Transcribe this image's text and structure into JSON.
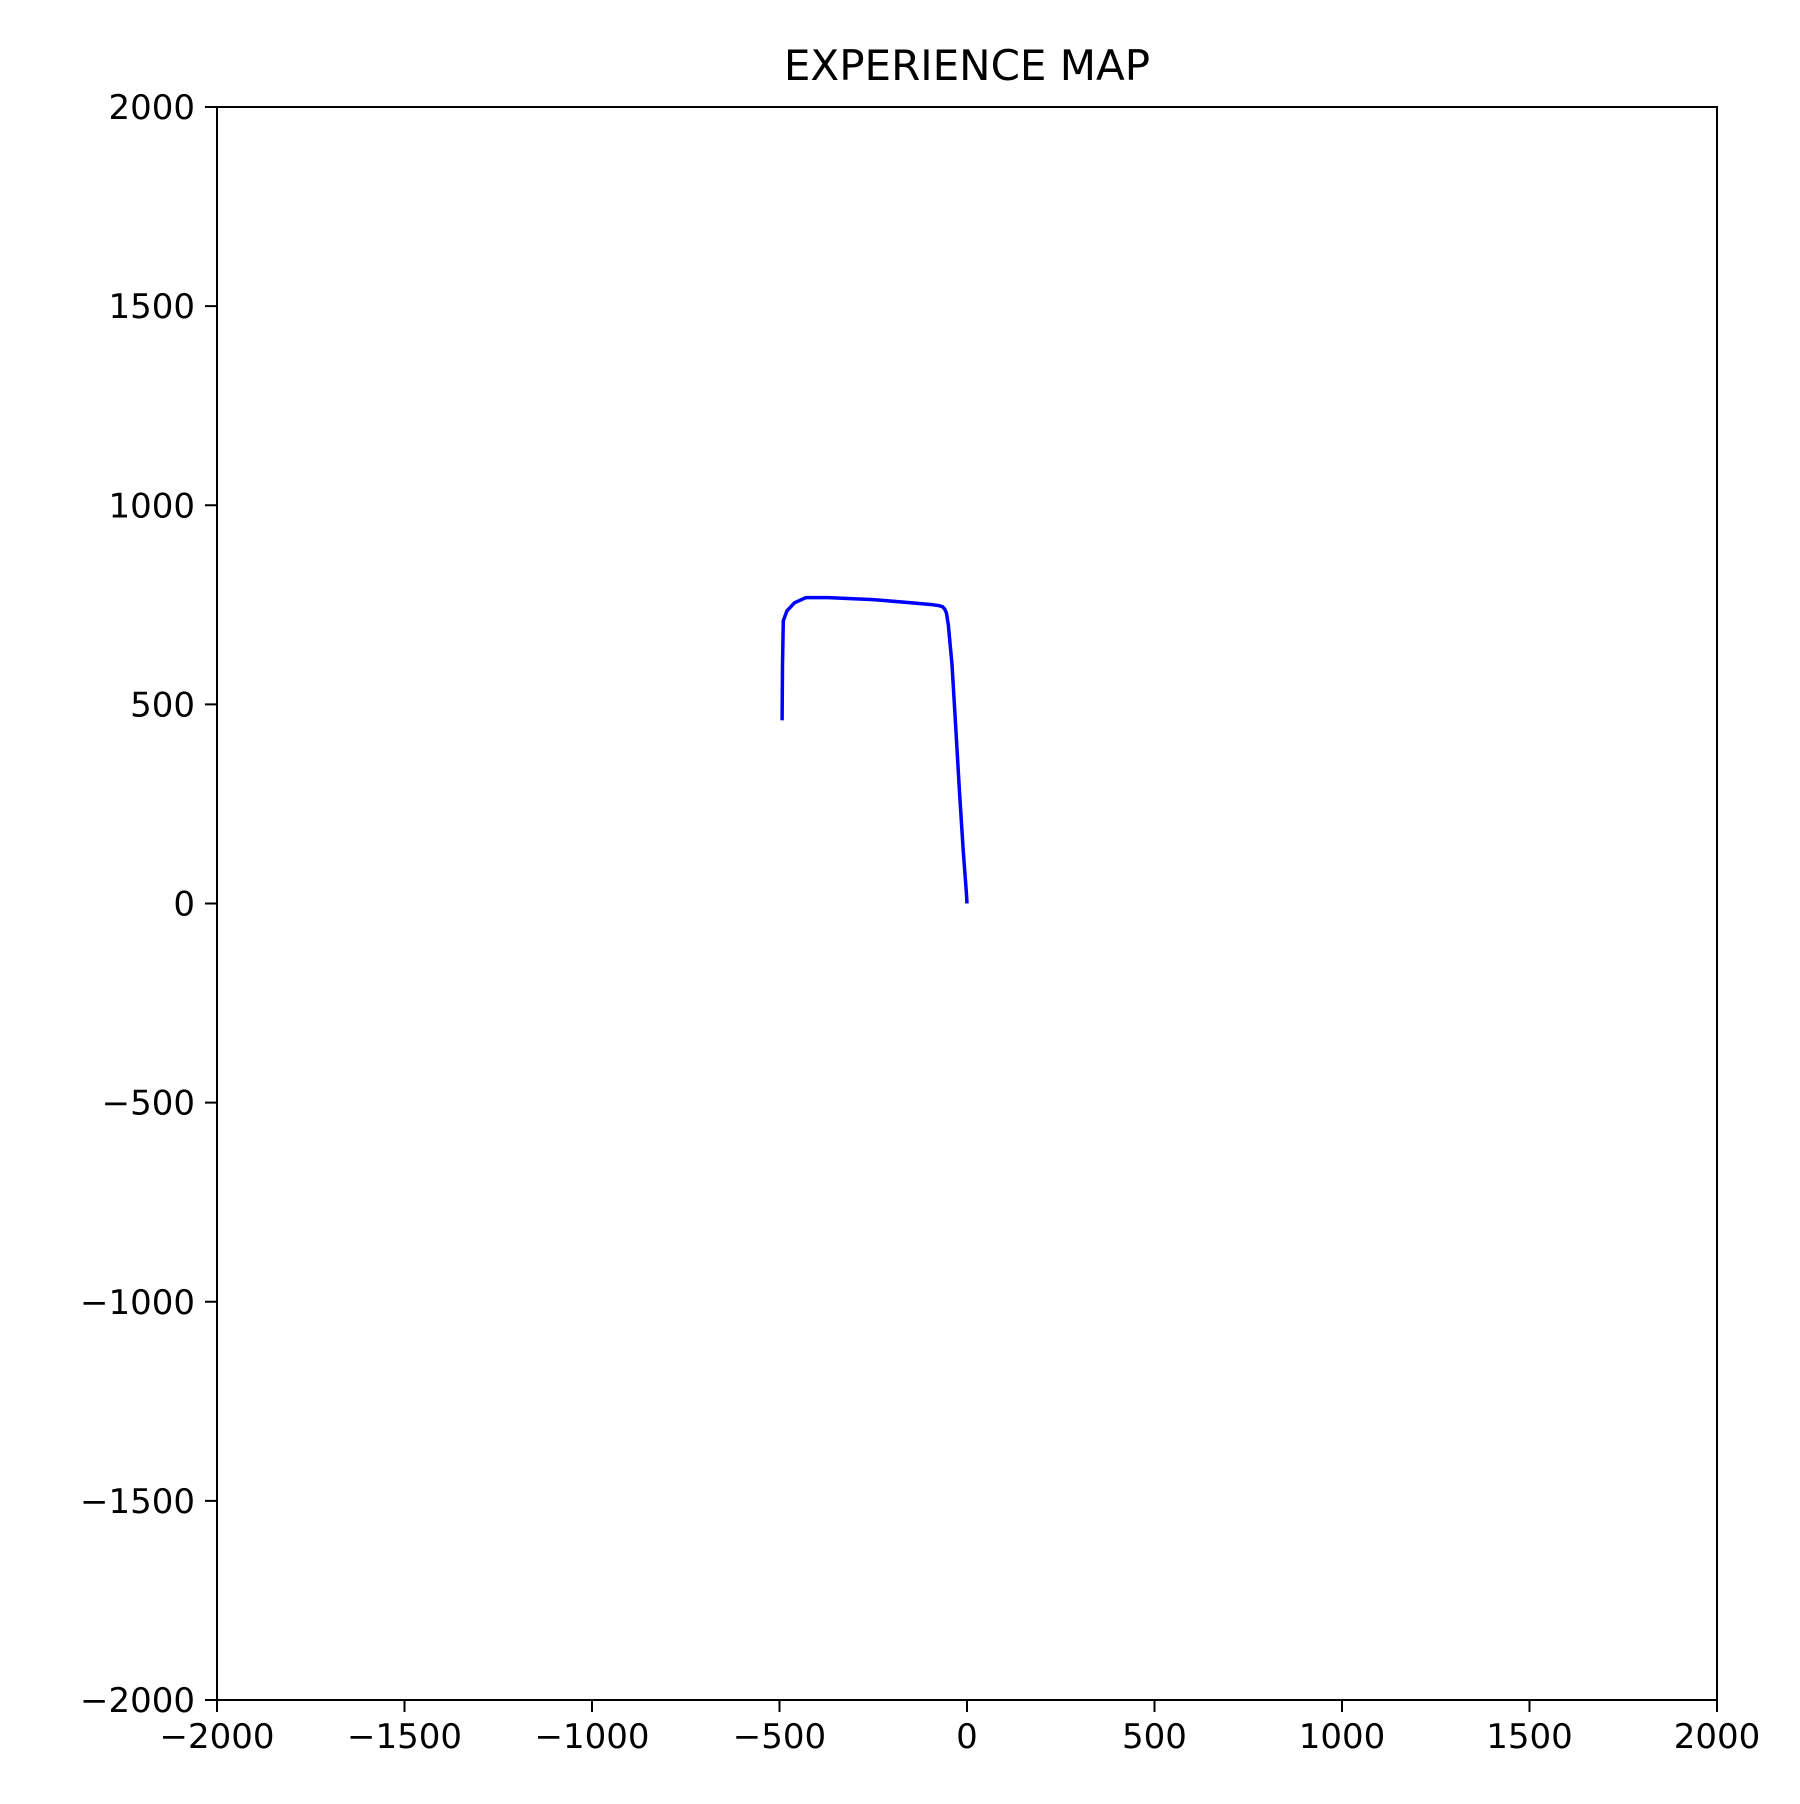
{
  "chart_data": {
    "type": "line",
    "title": "EXPERIENCE MAP",
    "xlabel": "",
    "ylabel": "",
    "xlim": [
      -2000,
      2000
    ],
    "ylim": [
      -2000,
      2000
    ],
    "grid": false,
    "legend": "none",
    "x_ticks": [
      -2000,
      -1500,
      -1000,
      -500,
      0,
      500,
      1000,
      1500,
      2000
    ],
    "y_ticks": [
      -2000,
      -1500,
      -1000,
      -500,
      0,
      500,
      1000,
      1500,
      2000
    ],
    "x_tick_labels": [
      "−2000",
      "−1500",
      "−1000",
      "−500",
      "0",
      "500",
      "1000",
      "1500",
      "2000"
    ],
    "y_tick_labels": [
      "−2000",
      "−1500",
      "−1000",
      "−500",
      "0",
      "500",
      "1000",
      "1500",
      "2000"
    ],
    "series": [
      {
        "color": "#0000ff",
        "x": [
          0,
          -2,
          -10,
          -20,
          -30,
          -40,
          -50,
          -55,
          -60,
          -65,
          -75,
          -90,
          -150,
          -250,
          -370,
          -430,
          -460,
          -480,
          -490,
          -492,
          -493
        ],
        "y": [
          0,
          30,
          130,
          280,
          440,
          600,
          700,
          730,
          740,
          745,
          748,
          750,
          755,
          763,
          768,
          768,
          755,
          735,
          710,
          600,
          460
        ]
      }
    ]
  }
}
